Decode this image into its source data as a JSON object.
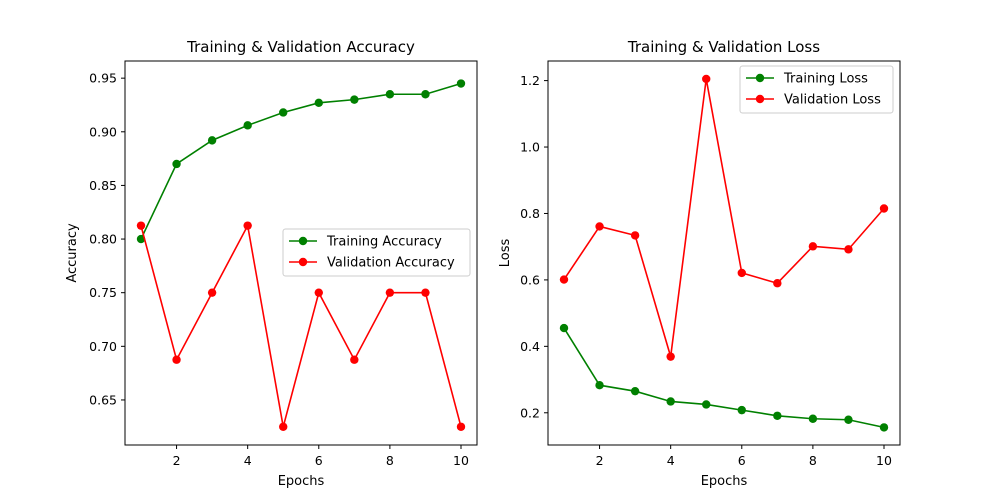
{
  "chart_data": [
    {
      "type": "line",
      "title": "Training & Validation Accuracy",
      "xlabel": "Epochs",
      "ylabel": "Accuracy",
      "xlim": [
        0.55,
        10.45
      ],
      "ylim": [
        0.608,
        0.966
      ],
      "xticks": [
        2,
        4,
        6,
        8,
        10
      ],
      "xtick_labels": [
        "2",
        "4",
        "6",
        "8",
        "10"
      ],
      "yticks": [
        0.65,
        0.7,
        0.75,
        0.8,
        0.85,
        0.9,
        0.95
      ],
      "ytick_labels": [
        "0.65",
        "0.70",
        "0.75",
        "0.80",
        "0.85",
        "0.90",
        "0.95"
      ],
      "grid": false,
      "legend_position": "center-right",
      "x": [
        1,
        2,
        3,
        4,
        5,
        6,
        7,
        8,
        9,
        10
      ],
      "series": [
        {
          "name": "Training Accuracy",
          "color": "#008000",
          "values": [
            0.8,
            0.87,
            0.892,
            0.906,
            0.918,
            0.927,
            0.93,
            0.935,
            0.935,
            0.945
          ]
        },
        {
          "name": "Validation Accuracy",
          "color": "#ff0000",
          "values": [
            0.8125,
            0.6875,
            0.75,
            0.8125,
            0.625,
            0.75,
            0.6875,
            0.75,
            0.75,
            0.625
          ]
        }
      ]
    },
    {
      "type": "line",
      "title": "Training & Validation Loss",
      "xlabel": "Epochs",
      "ylabel": "Loss",
      "xlim": [
        0.55,
        10.45
      ],
      "ylim": [
        0.103,
        1.259
      ],
      "xticks": [
        2,
        4,
        6,
        8,
        10
      ],
      "xtick_labels": [
        "2",
        "4",
        "6",
        "8",
        "10"
      ],
      "yticks": [
        0.2,
        0.4,
        0.6,
        0.8,
        1.0,
        1.2
      ],
      "ytick_labels": [
        "0.2",
        "0.4",
        "0.6",
        "0.8",
        "1.0",
        "1.2"
      ],
      "grid": false,
      "legend_position": "top-right",
      "x": [
        1,
        2,
        3,
        4,
        5,
        6,
        7,
        8,
        9,
        10
      ],
      "series": [
        {
          "name": "Training Loss",
          "color": "#008000",
          "values": [
            0.455,
            0.283,
            0.265,
            0.234,
            0.225,
            0.208,
            0.191,
            0.182,
            0.179,
            0.156
          ]
        },
        {
          "name": "Validation Loss",
          "color": "#ff0000",
          "values": [
            0.601,
            0.761,
            0.734,
            0.369,
            1.205,
            0.621,
            0.59,
            0.701,
            0.692,
            0.815
          ]
        }
      ]
    }
  ]
}
